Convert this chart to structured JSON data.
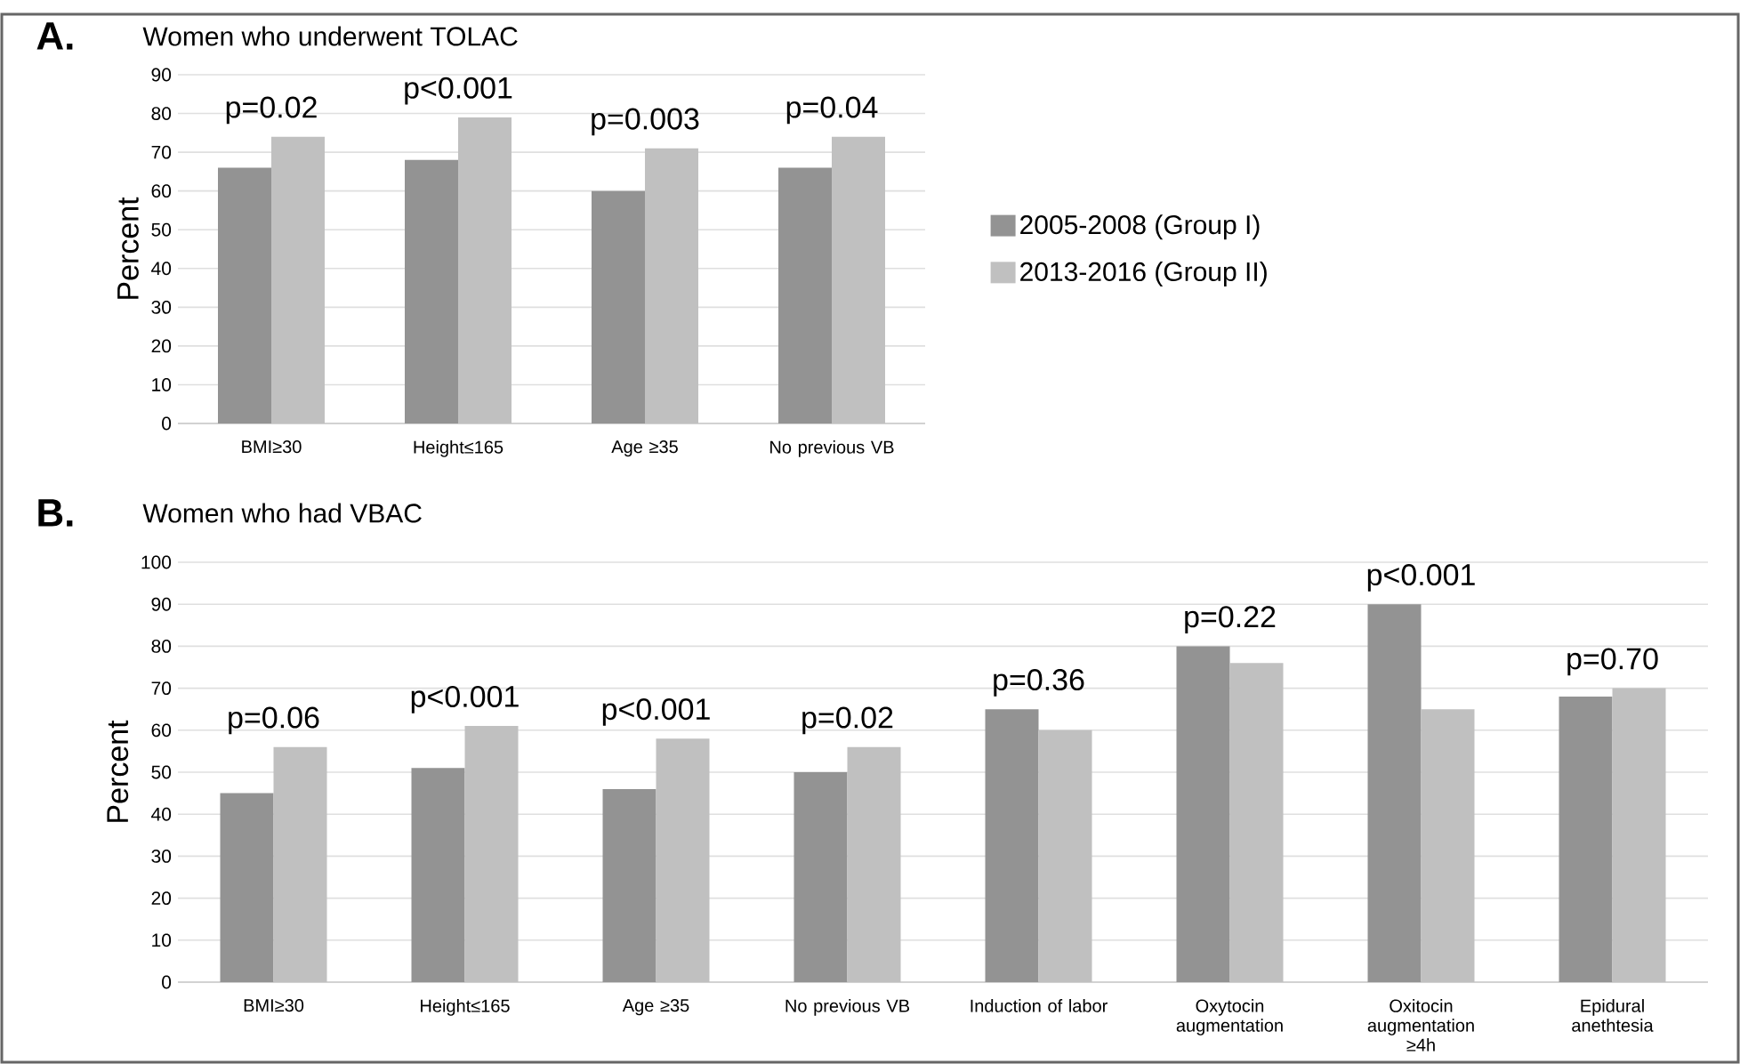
{
  "chart_data": [
    {
      "type": "bar",
      "title": "Women who underwent TOLAC",
      "ylabel": "Percent",
      "categories": [
        "BMI≥30",
        "Height≤165",
        "Age ≥35",
        "No previous VB"
      ],
      "series": [
        {
          "name": "2005-2008 (Group I)",
          "color": "#939393",
          "values": [
            66,
            68,
            60,
            66
          ]
        },
        {
          "name": "2013-2016 (Group II)",
          "color": "#c0c0c0",
          "values": [
            74,
            79,
            71,
            74
          ]
        }
      ],
      "ylim": [
        0,
        90
      ],
      "yticks": [
        0,
        10,
        20,
        30,
        40,
        50,
        60,
        70,
        80,
        90
      ],
      "grid": "y",
      "legend": "right",
      "annotations": [
        "A.",
        "p=0.02",
        "p<0.001",
        "p=0.003",
        "p=0.04"
      ]
    },
    {
      "type": "bar",
      "title": "Women who had VBAC",
      "ylabel": "Percent",
      "categories": [
        "BMI≥30",
        "Height≤165",
        "Age ≥35",
        "No previous VB",
        "Induction of labor",
        "Oxytocin augmentation",
        "Oxitocin augmentation ≥4h",
        "Epidural anethtesia"
      ],
      "series": [
        {
          "color": "#939393",
          "values": [
            45,
            51,
            46,
            50,
            65,
            80,
            90,
            68
          ]
        },
        {
          "color": "#c0c0c0",
          "values": [
            56,
            61,
            58,
            56,
            60,
            76,
            65,
            70
          ]
        }
      ],
      "ylim": [
        0,
        100
      ],
      "yticks": [
        0,
        10,
        20,
        30,
        40,
        50,
        60,
        70,
        80,
        90,
        100
      ],
      "grid": "y",
      "annotations": [
        "B.",
        "p=0.06",
        "p<0.001",
        "p<0.001",
        "p=0.02",
        "p=0.36",
        "p=0.22",
        "p<0.001",
        "p=0.70"
      ]
    }
  ]
}
